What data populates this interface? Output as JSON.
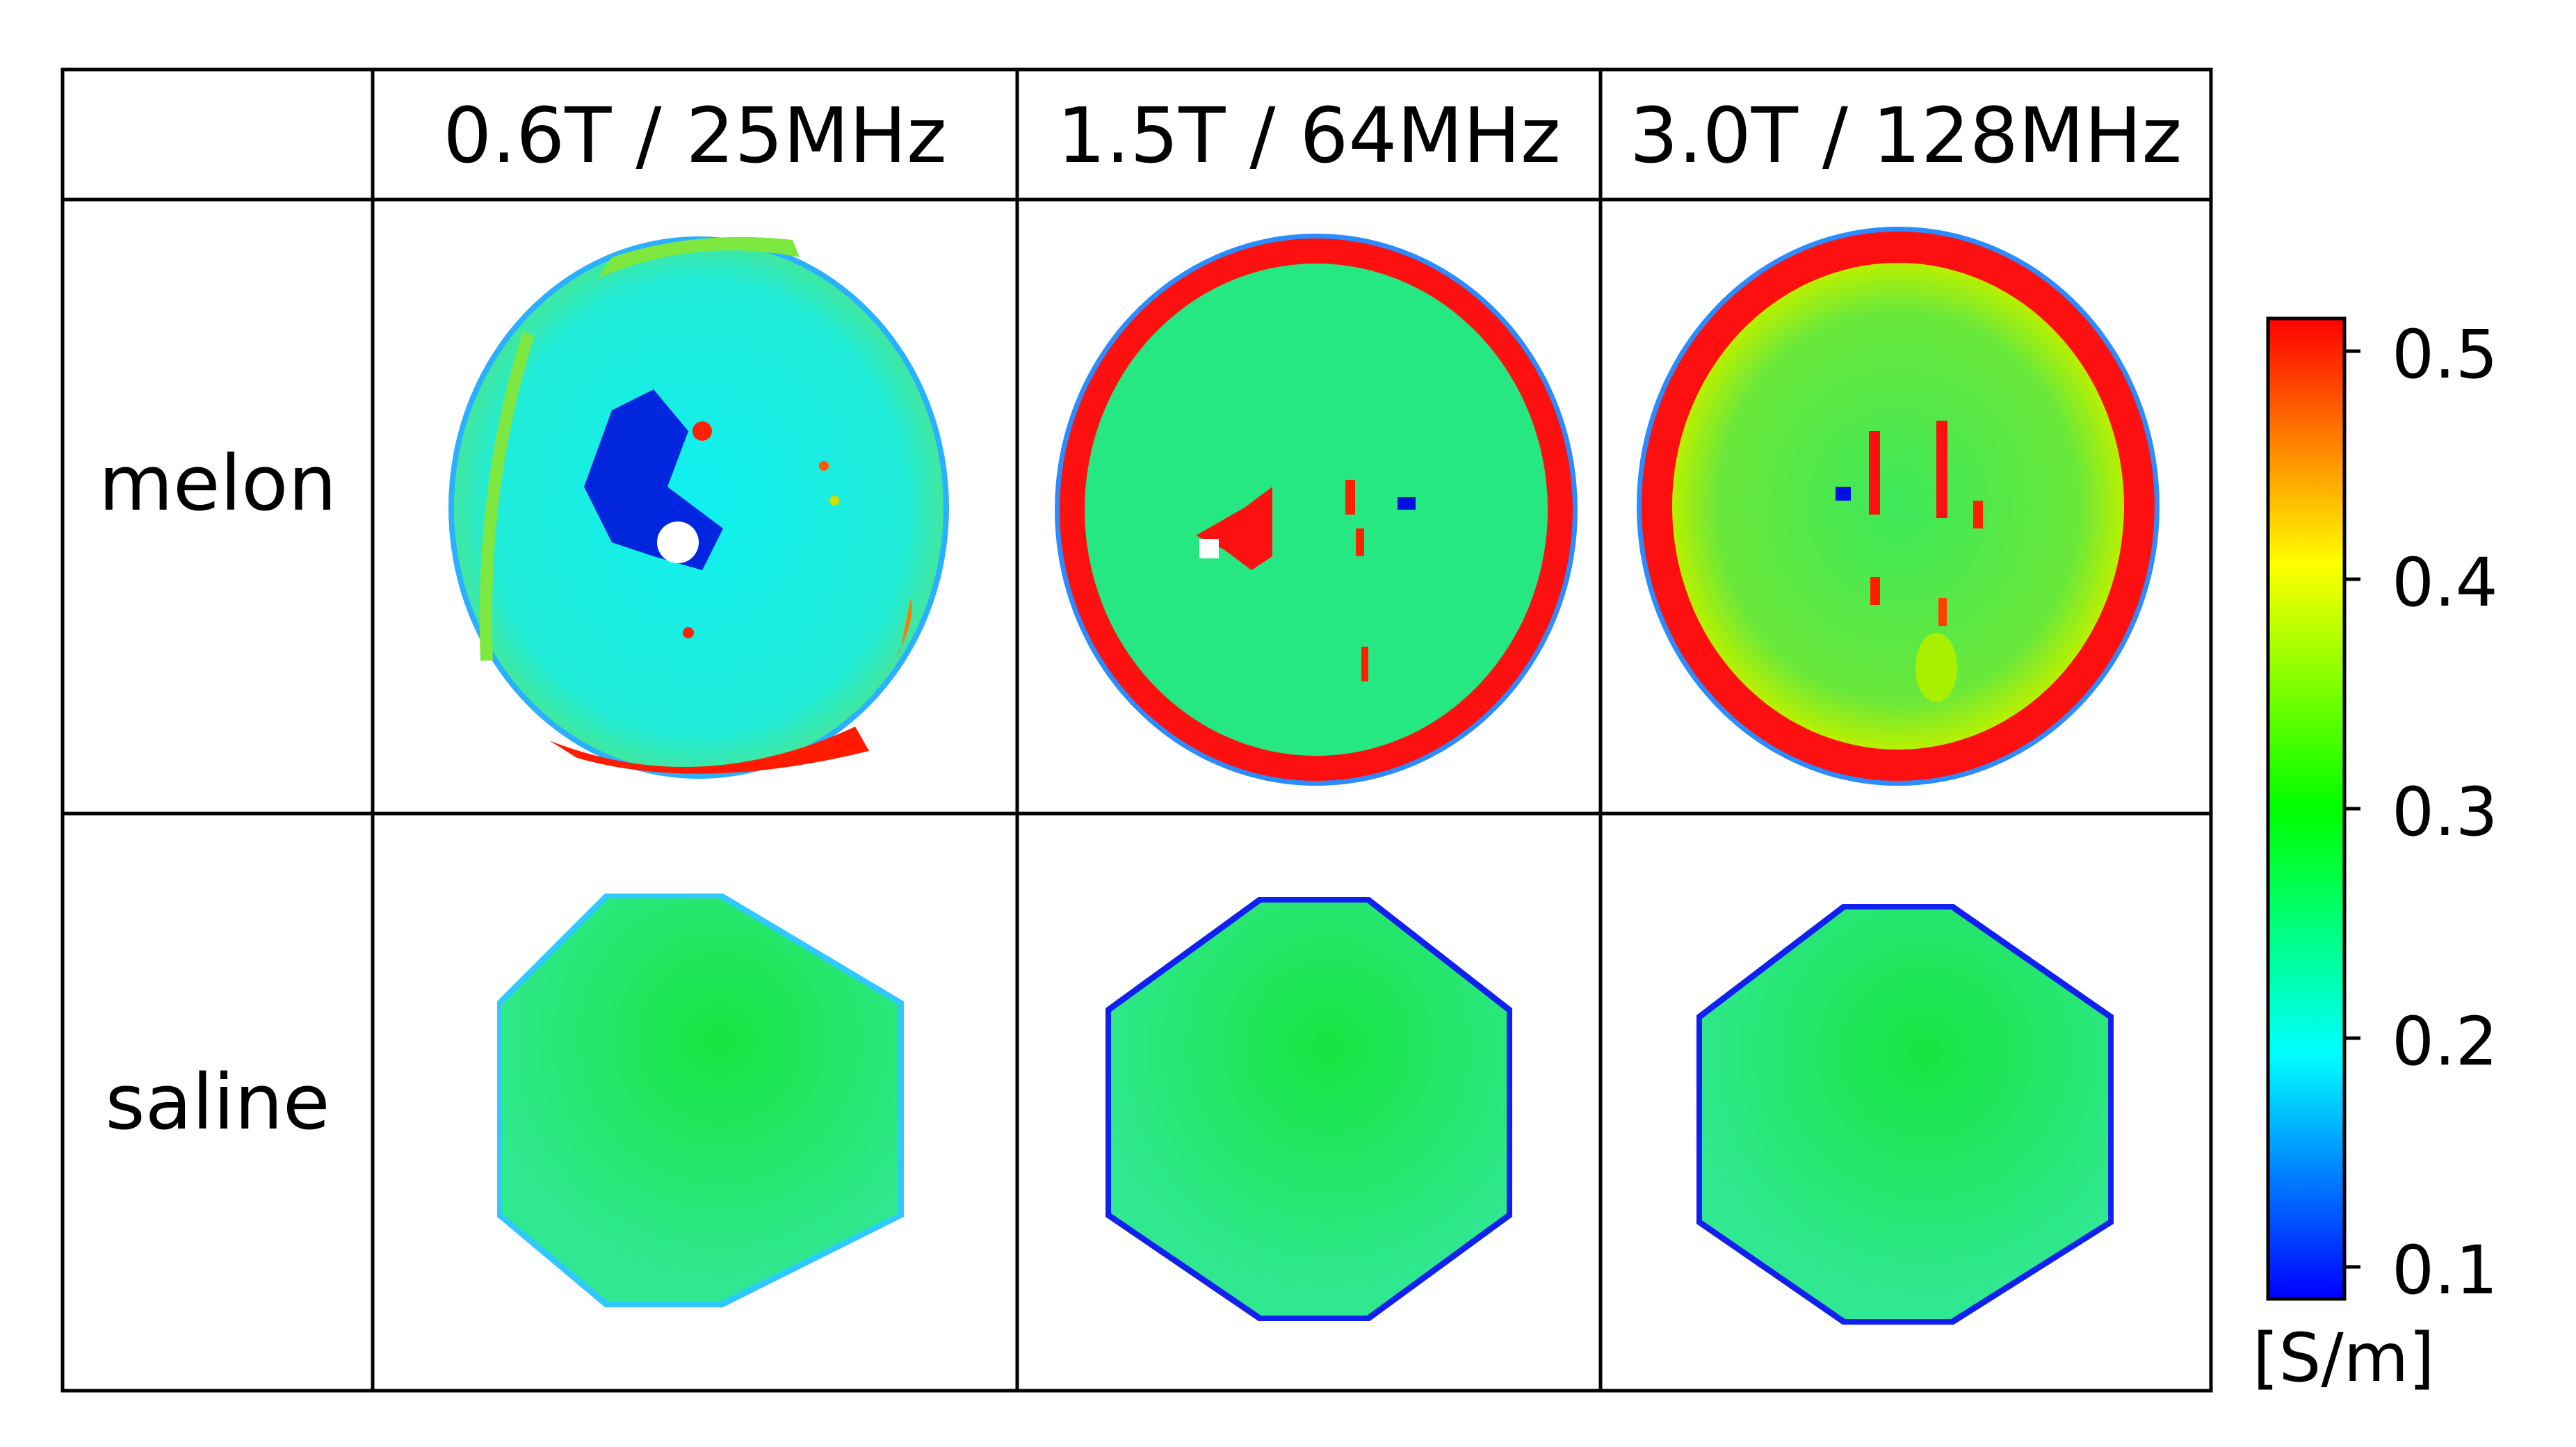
{
  "table": {
    "columns": [
      "0.6T / 25MHz",
      "1.5T / 64MHz",
      "3.0T / 128MHz"
    ],
    "rows": [
      "melon",
      "saline"
    ]
  },
  "colorbar": {
    "ticks": [
      "0.5",
      "0.4",
      "0.3",
      "0.2",
      "0.1"
    ],
    "unit": "[S/m]",
    "range": [
      0.1,
      0.5
    ],
    "colormap": [
      "#0000ff",
      "#00ffff",
      "#00ff00",
      "#ffff00",
      "#ff0000"
    ]
  },
  "colors": {
    "rind_red": "#ff0000",
    "melon_cyan": "#1ef0d8",
    "melon_green": "#26e878",
    "saline_green": "#22e470",
    "edge_blue": "#0033ff"
  }
}
